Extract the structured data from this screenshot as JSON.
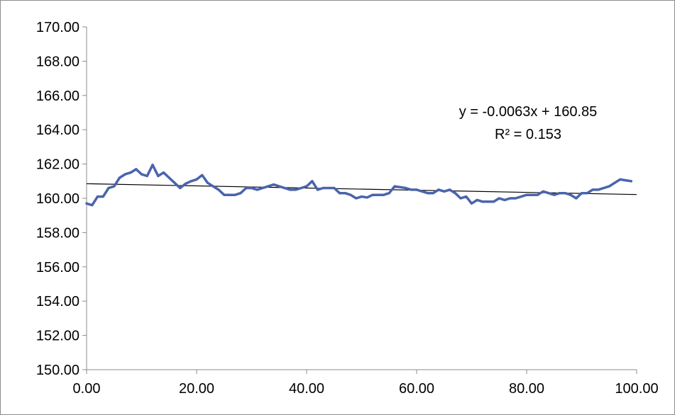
{
  "chart_data": {
    "type": "line",
    "title": "",
    "xlabel": "",
    "ylabel": "",
    "xlim": [
      0,
      100
    ],
    "ylim": [
      150,
      170
    ],
    "x_ticks": [
      "0.00",
      "20.00",
      "40.00",
      "60.00",
      "80.00",
      "100.00"
    ],
    "y_ticks": [
      "150.00",
      "152.00",
      "154.00",
      "156.00",
      "158.00",
      "160.00",
      "162.00",
      "164.00",
      "166.00",
      "168.00",
      "170.00"
    ],
    "grid": false,
    "legend": "none",
    "series": [
      {
        "color": "#4a64ac",
        "x": [
          0,
          1,
          2,
          3,
          4,
          5,
          6,
          7,
          8,
          9,
          10,
          11,
          12,
          13,
          14,
          15,
          16,
          17,
          18,
          19,
          20,
          21,
          22,
          23,
          24,
          25,
          26,
          27,
          28,
          29,
          30,
          31,
          32,
          33,
          34,
          35,
          36,
          37,
          38,
          39,
          40,
          41,
          42,
          43,
          44,
          45,
          46,
          47,
          48,
          49,
          50,
          51,
          52,
          53,
          54,
          55,
          56,
          57,
          58,
          59,
          60,
          61,
          62,
          63,
          64,
          65,
          66,
          67,
          68,
          69,
          70,
          71,
          72,
          73,
          74,
          75,
          76,
          77,
          78,
          79,
          80,
          81,
          82,
          83,
          84,
          85,
          86,
          87,
          88,
          89,
          90,
          91,
          92,
          93,
          94,
          95,
          96,
          97,
          98,
          99
        ],
        "y": [
          159.7,
          159.6,
          160.1,
          160.1,
          160.6,
          160.7,
          161.2,
          161.4,
          161.5,
          161.7,
          161.4,
          161.3,
          161.95,
          161.3,
          161.5,
          161.2,
          160.9,
          160.6,
          160.85,
          161.0,
          161.1,
          161.35,
          160.9,
          160.7,
          160.5,
          160.2,
          160.2,
          160.2,
          160.3,
          160.6,
          160.6,
          160.5,
          160.6,
          160.7,
          160.8,
          160.7,
          160.6,
          160.5,
          160.5,
          160.6,
          160.7,
          161.0,
          160.5,
          160.6,
          160.6,
          160.6,
          160.3,
          160.3,
          160.2,
          160.0,
          160.1,
          160.05,
          160.2,
          160.2,
          160.2,
          160.3,
          160.7,
          160.65,
          160.6,
          160.5,
          160.5,
          160.4,
          160.3,
          160.3,
          160.5,
          160.4,
          160.5,
          160.3,
          160.0,
          160.1,
          159.7,
          159.9,
          159.8,
          159.8,
          159.8,
          160.0,
          159.9,
          160.0,
          160.0,
          160.1,
          160.2,
          160.2,
          160.2,
          160.4,
          160.3,
          160.2,
          160.3,
          160.3,
          160.2,
          160.0,
          160.3,
          160.3,
          160.5,
          160.5,
          160.6,
          160.7,
          160.9,
          161.1,
          161.05,
          161.0
        ]
      }
    ],
    "trendline": {
      "slope": -0.0063,
      "intercept": 160.85,
      "color": "#000000",
      "equation": "y = -0.0063x + 160.85",
      "r_squared": "R² = 0.153"
    }
  }
}
